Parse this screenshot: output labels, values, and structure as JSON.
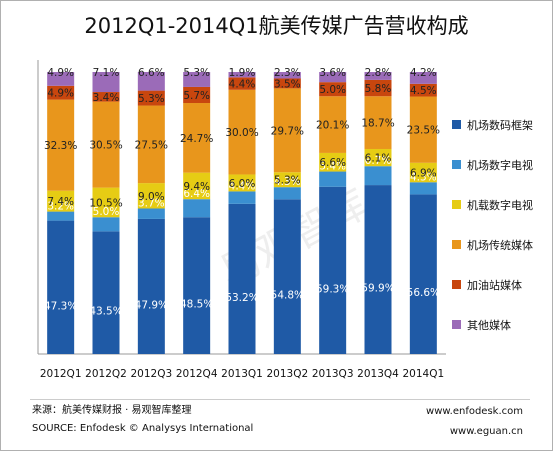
{
  "title": "2012Q1-2014Q1航美传媒广告营收构成",
  "source": {
    "cn": "来源：航美传媒财报 · 易观智库整理",
    "en": "SOURCE:  Enfodesk © Analysys International"
  },
  "links": [
    "www.enfodesk.com",
    "www.eguan.cn"
  ],
  "watermark": "易观智库",
  "chart_data": {
    "type": "bar",
    "stacked": true,
    "percent": true,
    "title": "2012Q1-2014Q1航美传媒广告营收构成",
    "categories": [
      "2012Q1",
      "2012Q2",
      "2012Q3",
      "2012Q4",
      "2013Q1",
      "2013Q2",
      "2013Q3",
      "2013Q4",
      "2014Q1"
    ],
    "ylim": [
      0,
      100
    ],
    "legend": "right",
    "series": [
      {
        "name": "机场数码框架",
        "color": "#1f5aa6",
        "values": [
          47.3,
          43.5,
          47.9,
          48.5,
          53.2,
          54.8,
          59.3,
          59.9,
          56.6
        ]
      },
      {
        "name": "机场数字电视",
        "color": "#3a8fd0",
        "values": [
          3.2,
          5.0,
          3.7,
          6.4,
          4.4,
          4.3,
          5.4,
          6.7,
          4.3
        ]
      },
      {
        "name": "机载数字电视",
        "color": "#e6cc14",
        "values": [
          7.4,
          10.5,
          9.0,
          9.4,
          6.0,
          5.3,
          6.6,
          6.1,
          6.9
        ]
      },
      {
        "name": "机场传统媒体",
        "color": "#e8961c",
        "values": [
          32.3,
          30.5,
          27.5,
          24.7,
          30.0,
          29.7,
          20.1,
          18.7,
          23.5
        ]
      },
      {
        "name": "加油站媒体",
        "color": "#c8460e",
        "values": [
          4.9,
          3.4,
          5.3,
          5.7,
          4.4,
          3.5,
          5.0,
          5.8,
          4.5
        ]
      },
      {
        "name": "其他媒体",
        "color": "#9b6bb8",
        "values": [
          4.9,
          7.1,
          6.6,
          5.3,
          1.9,
          2.3,
          3.6,
          2.8,
          4.2
        ]
      }
    ],
    "labels": [
      [
        "47.3%",
        "3.2%",
        "7.4%",
        "32.3%",
        "4.9%",
        "4.9%"
      ],
      [
        "43.5%",
        "5.0%",
        "10.5%",
        "30.5%",
        "3.4%",
        "7.1%"
      ],
      [
        "47.9%",
        "3.7%",
        "9.0%",
        "27.5%",
        "5.3%",
        "6.6%"
      ],
      [
        "48.5%",
        "6.4%",
        "9.4%",
        "24.7%",
        "5.7%",
        "5.3%"
      ],
      [
        "53.2%",
        "4.4%",
        "6.0%",
        "30.0%",
        "4.4%",
        "1.9%"
      ],
      [
        "54.8%",
        "4.3%",
        "5.3%",
        "29.7%",
        "3.5%",
        "2.3%"
      ],
      [
        "59.3%",
        "5.4%",
        "6.6%",
        "20.1%",
        "5.0%",
        "3.6%"
      ],
      [
        "59.9%",
        "6.7%",
        "6.1%",
        "18.7%",
        "5.8%",
        "2.8%"
      ],
      [
        "56.6%",
        "4.3%",
        "6.9%",
        "23.5%",
        "4.5%",
        "4.2%"
      ]
    ]
  }
}
